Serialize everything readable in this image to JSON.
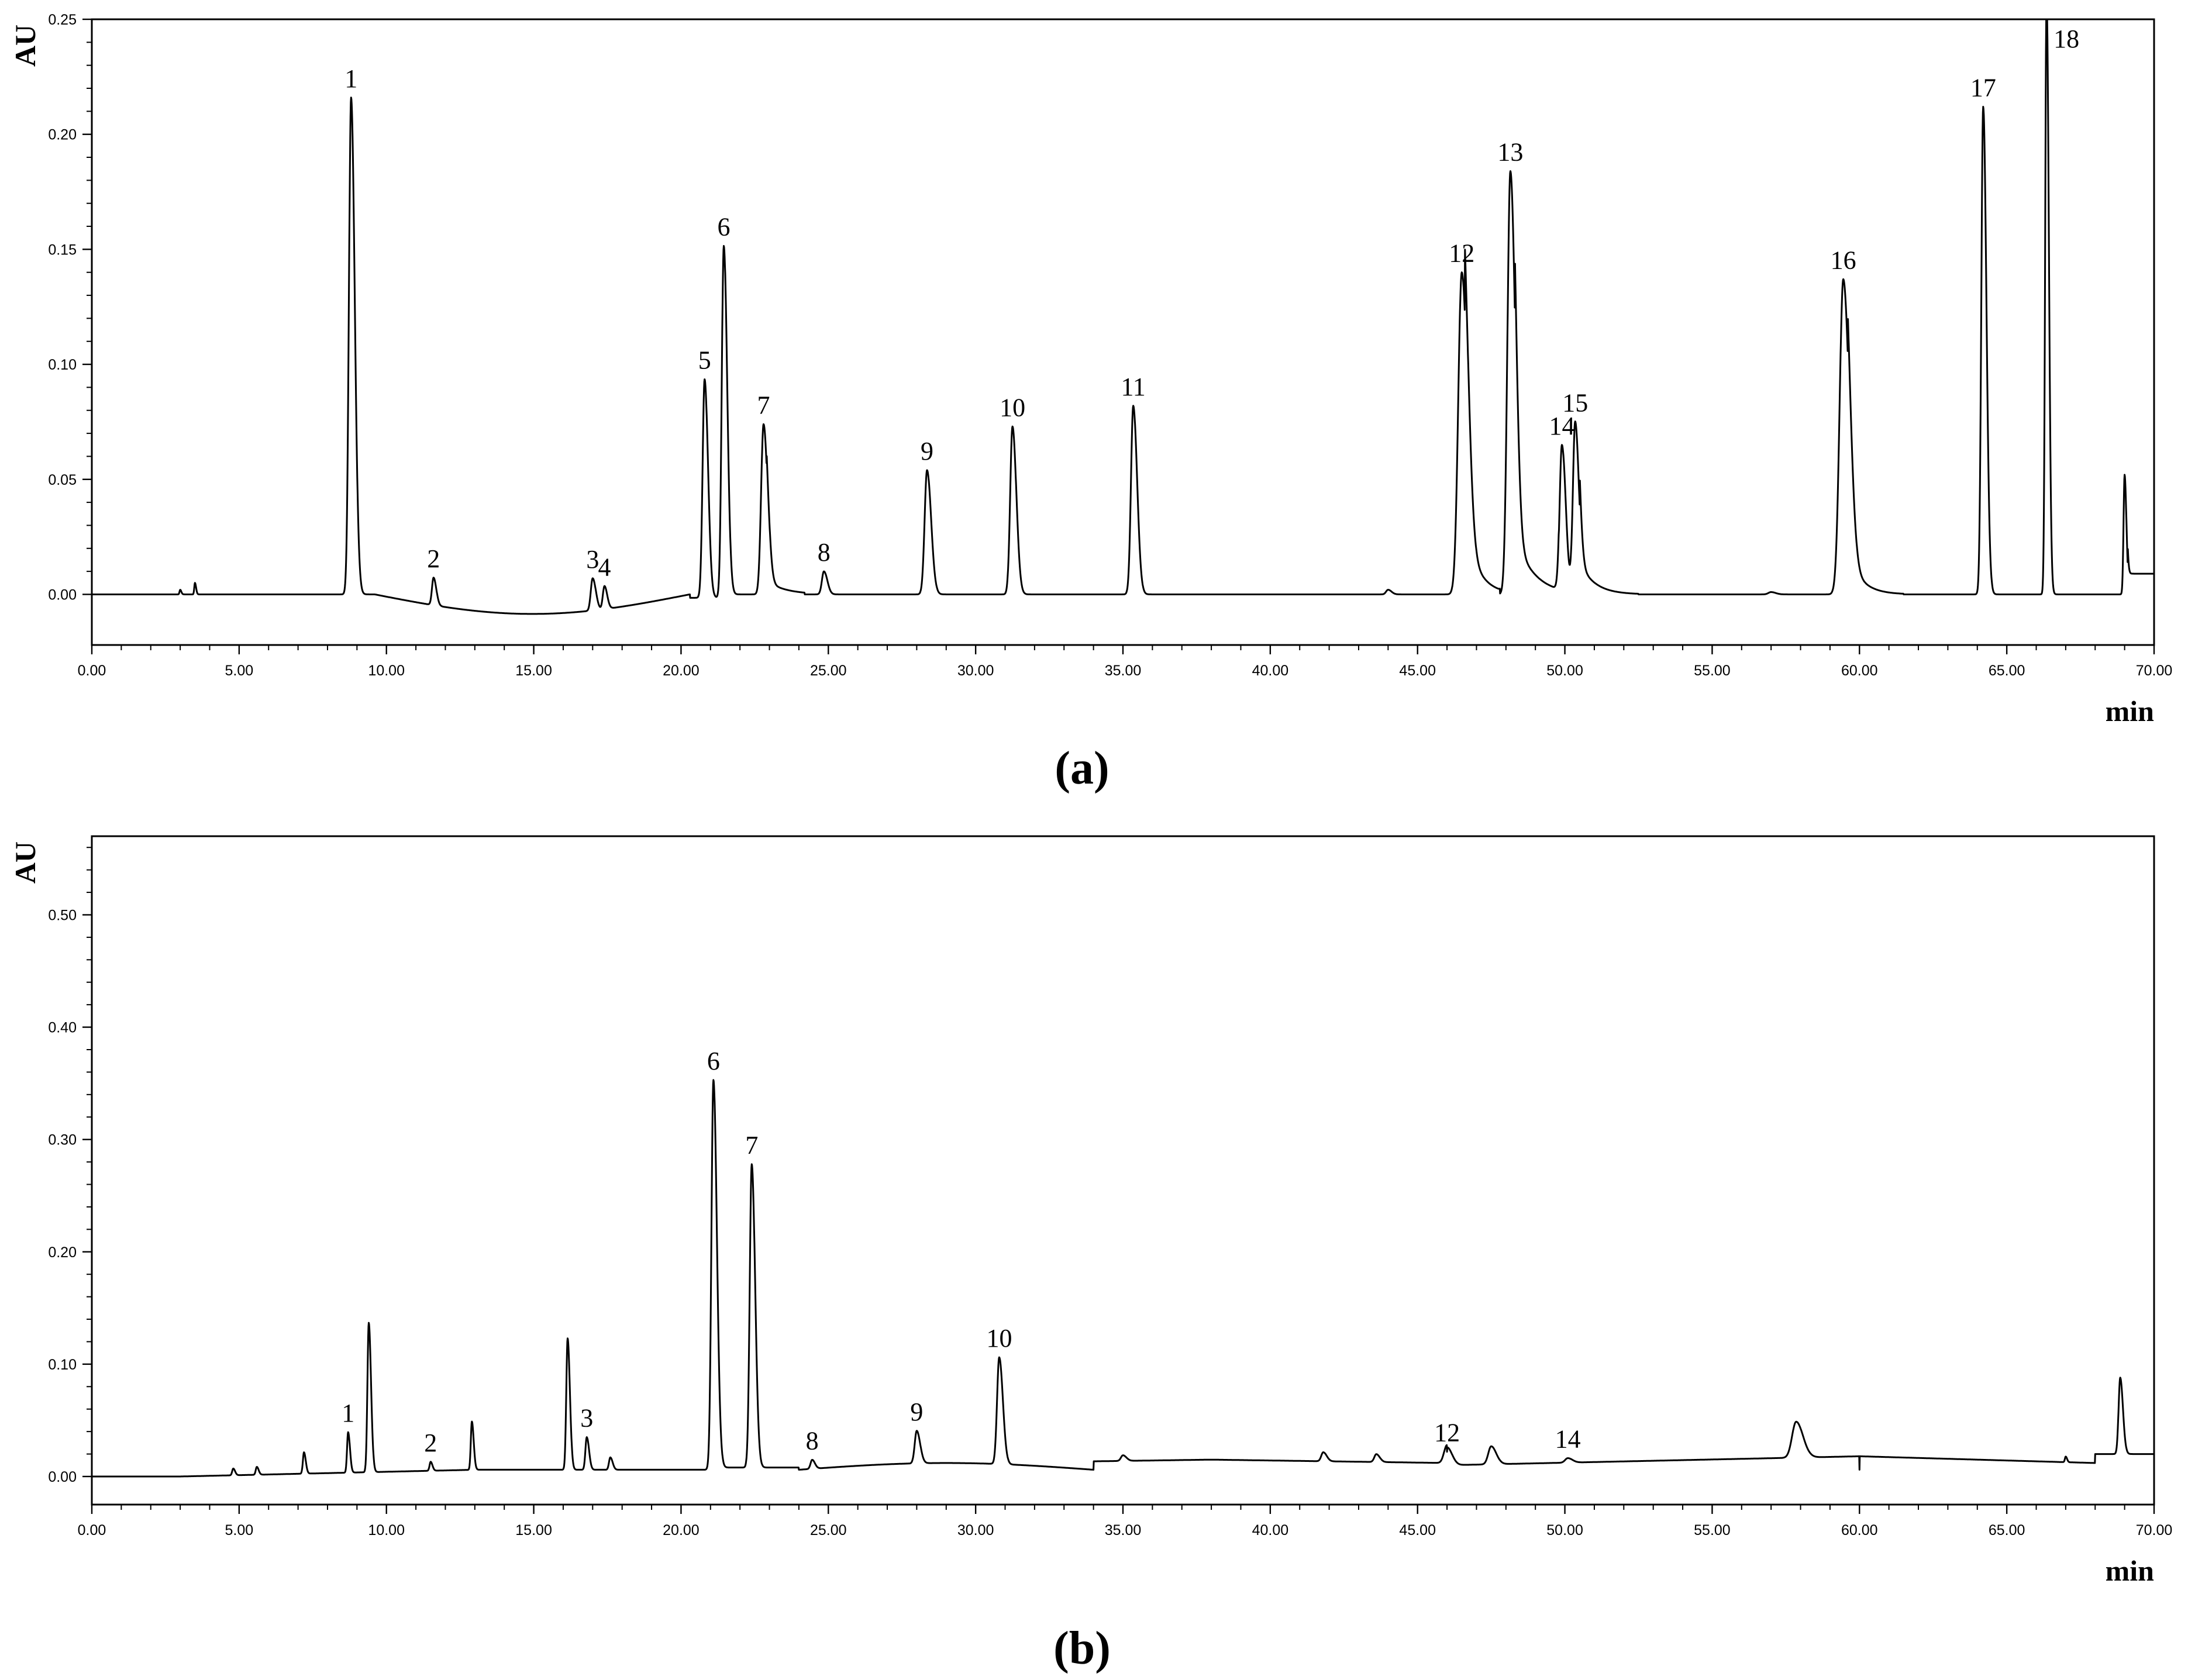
{
  "chart_data": [
    {
      "type": "line",
      "panel_label": "(a)",
      "ylabel": "AU",
      "xlabel": "min",
      "xlim": [
        0,
        70
      ],
      "ylim": [
        -0.022,
        0.25
      ],
      "x_ticks": [
        "0.00",
        "5.00",
        "10.00",
        "15.00",
        "20.00",
        "25.00",
        "30.00",
        "35.00",
        "40.00",
        "45.00",
        "50.00",
        "55.00",
        "60.00",
        "65.00",
        "70.00"
      ],
      "y_ticks": [
        "0.00",
        "0.05",
        "0.10",
        "0.15",
        "0.20",
        "0.25"
      ],
      "y_tick_values": [
        0,
        0.05,
        0.1,
        0.15,
        0.2,
        0.25
      ],
      "grid": false,
      "peaks": [
        {
          "label": "1",
          "rt": 8.8,
          "height": 0.216,
          "width": 0.16
        },
        {
          "label": "2",
          "rt": 11.6,
          "height": 0.012,
          "width": 0.12
        },
        {
          "label": "3",
          "rt": 17.0,
          "height": 0.014,
          "width": 0.14
        },
        {
          "label": "4",
          "rt": 17.4,
          "height": 0.01,
          "width": 0.12
        },
        {
          "label": "5",
          "rt": 20.8,
          "height": 0.095,
          "width": 0.15
        },
        {
          "label": "6",
          "rt": 21.45,
          "height": 0.153,
          "width": 0.15
        },
        {
          "label": "7",
          "rt": 22.8,
          "height": 0.074,
          "width": 0.18
        },
        {
          "label": "8",
          "rt": 24.85,
          "height": 0.01,
          "width": 0.15
        },
        {
          "label": "9",
          "rt": 28.35,
          "height": 0.054,
          "width": 0.18
        },
        {
          "label": "10",
          "rt": 31.25,
          "height": 0.073,
          "width": 0.17
        },
        {
          "label": "11",
          "rt": 35.35,
          "height": 0.082,
          "width": 0.17
        },
        {
          "label": "12",
          "rt": 46.5,
          "height": 0.14,
          "width": 0.26
        },
        {
          "label": "13",
          "rt": 48.15,
          "height": 0.184,
          "width": 0.22
        },
        {
          "label": "14",
          "rt": 49.9,
          "height": 0.065,
          "width": 0.17
        },
        {
          "label": "15",
          "rt": 50.35,
          "height": 0.075,
          "width": 0.17
        },
        {
          "label": "16",
          "rt": 59.45,
          "height": 0.137,
          "width": 0.27
        },
        {
          "label": "17",
          "rt": 64.2,
          "height": 0.212,
          "width": 0.14
        },
        {
          "label": "18",
          "rt": 66.35,
          "height": 0.26,
          "width": 0.1
        }
      ],
      "unlabeled_peaks": [
        {
          "rt": 3.5,
          "height": 0.005,
          "width": 0.05
        },
        {
          "rt": 3.0,
          "height": 0.002,
          "width": 0.05
        },
        {
          "rt": 44.0,
          "height": 0.002,
          "width": 0.15
        },
        {
          "rt": 57.0,
          "height": 0.001,
          "width": 0.2
        },
        {
          "rt": 69.0,
          "height": 0.052,
          "width": 0.08
        }
      ]
    },
    {
      "type": "line",
      "panel_label": "(b)",
      "ylabel": "AU",
      "xlabel": "min",
      "xlim": [
        0,
        70
      ],
      "ylim": [
        -0.025,
        0.57
      ],
      "x_ticks": [
        "0.00",
        "5.00",
        "10.00",
        "15.00",
        "20.00",
        "25.00",
        "30.00",
        "35.00",
        "40.00",
        "45.00",
        "50.00",
        "55.00",
        "60.00",
        "65.00",
        "70.00"
      ],
      "y_ticks": [
        "0.00",
        "0.10",
        "0.20",
        "0.30",
        "0.40",
        "0.50"
      ],
      "y_tick_values": [
        0,
        0.1,
        0.2,
        0.3,
        0.4,
        0.5
      ],
      "grid": false,
      "peaks": [
        {
          "label": "1",
          "rt": 8.7,
          "height": 0.036,
          "width": 0.08
        },
        {
          "label": "2",
          "rt": 11.5,
          "height": 0.008,
          "width": 0.08
        },
        {
          "label": "3",
          "rt": 16.8,
          "height": 0.029,
          "width": 0.1
        },
        {
          "label": "6",
          "rt": 21.1,
          "height": 0.345,
          "width": 0.15
        },
        {
          "label": "7",
          "rt": 22.4,
          "height": 0.27,
          "width": 0.15
        },
        {
          "label": "8",
          "rt": 24.45,
          "height": 0.008,
          "width": 0.12
        },
        {
          "label": "9",
          "rt": 28.0,
          "height": 0.029,
          "width": 0.15
        },
        {
          "label": "10",
          "rt": 30.8,
          "height": 0.095,
          "width": 0.16
        },
        {
          "label": "12",
          "rt": 46.0,
          "height": 0.016,
          "width": 0.22
        },
        {
          "label": "14",
          "rt": 50.1,
          "height": 0.004,
          "width": 0.2
        }
      ],
      "unlabeled_peaks": [
        {
          "rt": 4.8,
          "height": 0.006,
          "width": 0.08
        },
        {
          "rt": 5.6,
          "height": 0.007,
          "width": 0.08
        },
        {
          "rt": 7.2,
          "height": 0.019,
          "width": 0.08
        },
        {
          "rt": 9.4,
          "height": 0.133,
          "width": 0.1
        },
        {
          "rt": 12.9,
          "height": 0.043,
          "width": 0.08
        },
        {
          "rt": 16.15,
          "height": 0.117,
          "width": 0.1
        },
        {
          "rt": 17.6,
          "height": 0.011,
          "width": 0.1
        },
        {
          "rt": 35.0,
          "height": 0.005,
          "width": 0.15
        },
        {
          "rt": 41.8,
          "height": 0.008,
          "width": 0.15
        },
        {
          "rt": 43.6,
          "height": 0.007,
          "width": 0.15
        },
        {
          "rt": 47.5,
          "height": 0.016,
          "width": 0.22
        },
        {
          "rt": 57.85,
          "height": 0.032,
          "width": 0.3
        },
        {
          "rt": 67.0,
          "height": 0.005,
          "width": 0.06
        },
        {
          "rt": 68.85,
          "height": 0.068,
          "width": 0.12
        }
      ]
    }
  ]
}
